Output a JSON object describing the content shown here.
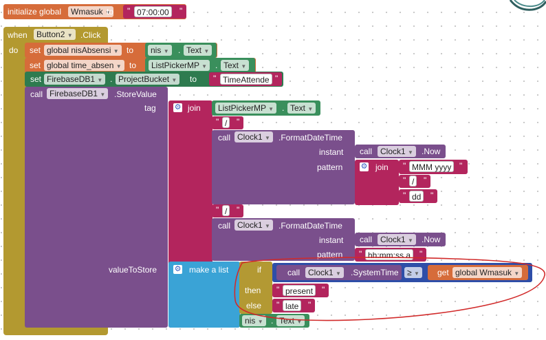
{
  "init_block": {
    "kw_initialize": "initialize global",
    "var_name": "Wmasuk",
    "kw_to": "to",
    "value": "07:00:00"
  },
  "event": {
    "kw_when": "when",
    "component": "Button2",
    "event_name": ".Click",
    "kw_do": "do"
  },
  "stmt1": {
    "kw_set": "set",
    "var": "global nisAbsensi",
    "kw_to": "to",
    "comp": "nis",
    "prop": "Text"
  },
  "stmt2": {
    "kw_set": "set",
    "var": "global time_absen",
    "kw_to": "to",
    "comp": "ListPickerMP",
    "prop": "Text"
  },
  "stmt3": {
    "kw_set": "set",
    "comp": "FirebaseDB1",
    "prop": "ProjectBucket",
    "kw_to": "to",
    "value": "TimeAttende"
  },
  "store": {
    "kw_call": "call",
    "comp": "FirebaseDB1",
    "method": ".StoreValue",
    "tag_label": "tag",
    "value_label": "valueToStore"
  },
  "join1": {
    "kw_join": "join",
    "picker": "ListPickerMP",
    "picker_prop": "Text",
    "slash1": "/",
    "slash2": "/"
  },
  "format1": {
    "kw_call": "call",
    "comp": "Clock1",
    "method": ".FormatDateTime",
    "instant_label": "instant",
    "pattern_label": "pattern",
    "now_call": "call",
    "now_comp": "Clock1",
    "now_method": ".Now",
    "kw_join": "join",
    "p1": "MMM yyyy",
    "p2": "/",
    "p3": "dd"
  },
  "format2": {
    "kw_call": "call",
    "comp": "Clock1",
    "method": ".FormatDateTime",
    "instant_label": "instant",
    "pattern_label": "pattern",
    "now_call": "call",
    "now_comp": "Clock1",
    "now_method": ".Now",
    "pattern_value": "hh:mm:ss a"
  },
  "list": {
    "kw_make": "make a list",
    "kw_if": "if",
    "kw_then": "then",
    "kw_else": "else",
    "sys_call": "call",
    "sys_comp": "Clock1",
    "sys_method": ".SystemTime",
    "op": "≥",
    "kw_get": "get",
    "get_var": "global Wmasuk",
    "then_value": "present",
    "else_value": "late",
    "nis_comp": "nis",
    "nis_prop": "Text"
  },
  "colors": {
    "procedure": "#b39930",
    "variable": "#d66c3a",
    "component_green": "#2e7b4f",
    "component_purple": "#7a4f8c",
    "text": "#b3255d",
    "list": "#3aa3d6",
    "math": "#2e4ea8",
    "highlight_circle": "#d12a2a"
  },
  "icons": {
    "dropdown": "triangle-down",
    "mutator": "gear-icon"
  }
}
